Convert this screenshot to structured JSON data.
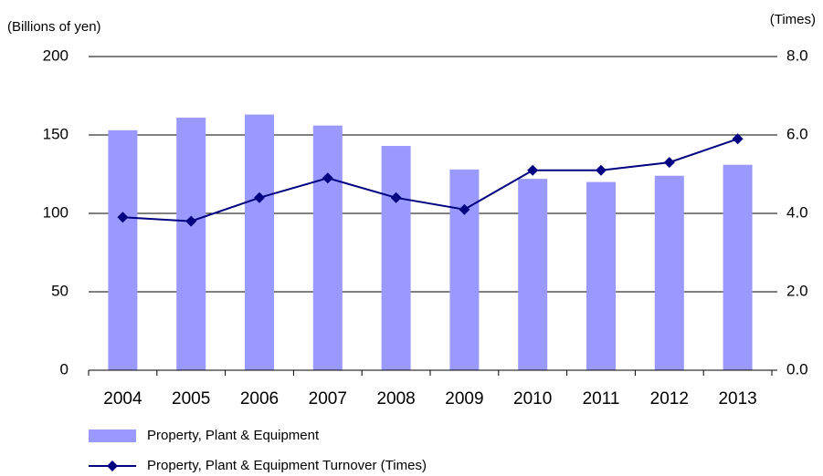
{
  "chart_data": {
    "type": "bar_line",
    "ylabel": "(Billions of yen)",
    "y2label": "(Times)",
    "categories": [
      "2004",
      "2005",
      "2006",
      "2007",
      "2008",
      "2009",
      "2010",
      "2011",
      "2012",
      "2013"
    ],
    "series": [
      {
        "name": "Property, Plant & Equipment",
        "type": "bar",
        "color": "#9999ff",
        "values": [
          153,
          161,
          163,
          156,
          143,
          128,
          122,
          120,
          124,
          131
        ]
      },
      {
        "name": "Property, Plant & Equipment Turnover (Times)",
        "type": "line",
        "axis": "y2",
        "color": "#000080",
        "values": [
          3.9,
          3.8,
          4.4,
          4.9,
          4.4,
          4.1,
          5.1,
          5.1,
          5.3,
          5.9
        ]
      }
    ],
    "ylim": [
      0,
      200
    ],
    "yticks": [
      0,
      50,
      100,
      150,
      200
    ],
    "y2lim": [
      0,
      8
    ],
    "y2ticks": [
      {
        "value": 0,
        "label": "0.0"
      },
      {
        "value": 2,
        "label": "2.0"
      },
      {
        "value": 4,
        "label": "4.0"
      },
      {
        "value": 6,
        "label": "6.0"
      },
      {
        "value": 8,
        "label": "8.0"
      }
    ],
    "grid": true
  }
}
